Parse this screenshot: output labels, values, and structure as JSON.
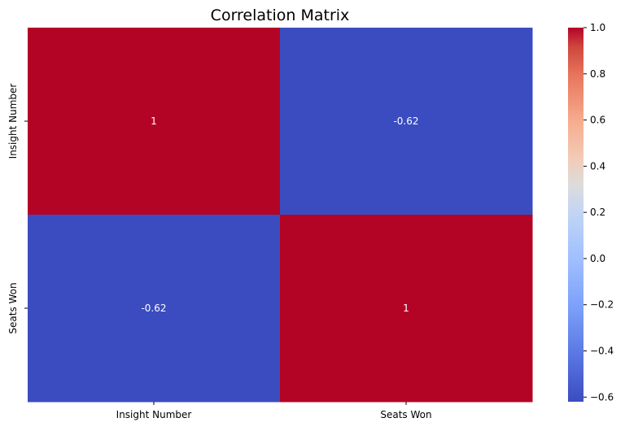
{
  "chart_data": {
    "type": "heatmap",
    "title": "Correlation Matrix",
    "x_categories": [
      "Insight Number",
      "Seats Won"
    ],
    "y_categories": [
      "Insight Number",
      "Seats Won"
    ],
    "values": [
      [
        1,
        -0.62
      ],
      [
        -0.62,
        1
      ]
    ],
    "cell_labels": [
      [
        "1",
        "-0.62"
      ],
      [
        "-0.62",
        "1"
      ]
    ],
    "colormap": "coolwarm",
    "colors": {
      "high": "#b40426",
      "low": "#3b4cc0",
      "mid": "#dddddd"
    },
    "colorbar": {
      "range": [
        -0.62,
        1.0
      ],
      "ticks": [
        1.0,
        0.8,
        0.6,
        0.4,
        0.2,
        0.0,
        -0.2,
        -0.4,
        -0.6
      ],
      "tick_labels": [
        "1.0",
        "0.8",
        "0.6",
        "0.4",
        "0.2",
        "0.0",
        "−0.2",
        "−0.4",
        "−0.6"
      ]
    }
  }
}
